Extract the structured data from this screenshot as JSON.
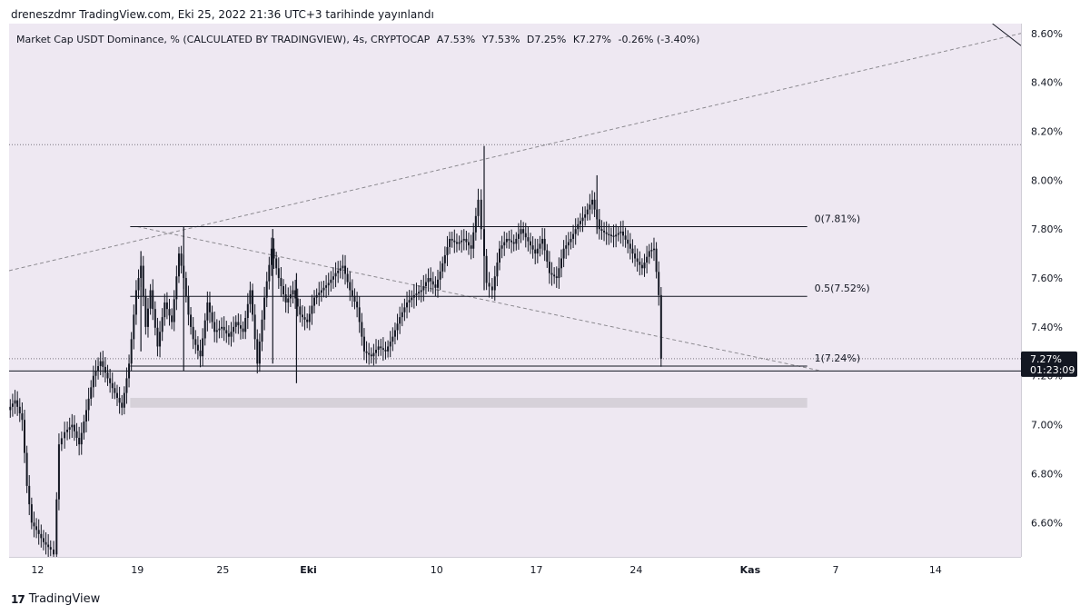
{
  "header": {
    "publish_line": "dreneszdmr TradingView.com, Eki 25, 2022 21:36 UTC+3 tarihinde yayınlandı"
  },
  "legend": {
    "symbol": "Market Cap USDT Dominance, % (CALCULATED BY TRADINGVIEW), 4s, CRYPTOCAP",
    "open": "A7.53%",
    "high": "Y7.53%",
    "low": "D7.25%",
    "close": "K7.27%",
    "change": "-0.26% (-3.40%)"
  },
  "footer": {
    "brand": "TradingView",
    "logo": "17"
  },
  "colors": {
    "chart_bg": "#eee8f2",
    "candle": "#131722",
    "price_tag_bg": "#131722",
    "zone": "#d6d1d9",
    "trendline": "#8c8a90"
  },
  "chart_data": {
    "type": "candlestick",
    "y_axis": {
      "range": [
        6.46,
        8.64
      ],
      "ticks": [
        "8.60%",
        "8.40%",
        "8.20%",
        "8.00%",
        "7.80%",
        "7.60%",
        "7.40%",
        "7.20%",
        "7.00%",
        "6.80%",
        "6.60%"
      ],
      "tick_values": [
        8.6,
        8.4,
        8.2,
        8.0,
        7.8,
        7.6,
        7.4,
        7.2,
        7.0,
        6.8,
        6.6
      ]
    },
    "x_axis": {
      "range": [
        "2022-09-10",
        "2022-11-20"
      ],
      "ticks": [
        {
          "label": "12",
          "date": "2022-09-12",
          "bold": false
        },
        {
          "label": "19",
          "date": "2022-09-19",
          "bold": false
        },
        {
          "label": "25",
          "date": "2022-09-25",
          "bold": false
        },
        {
          "label": "Eki",
          "date": "2022-10-01",
          "bold": true
        },
        {
          "label": "10",
          "date": "2022-10-10",
          "bold": false
        },
        {
          "label": "17",
          "date": "2022-10-17",
          "bold": false
        },
        {
          "label": "24",
          "date": "2022-10-24",
          "bold": false
        },
        {
          "label": "Kas",
          "date": "2022-11-01",
          "bold": true
        },
        {
          "label": "7",
          "date": "2022-11-07",
          "bold": false
        },
        {
          "label": "14",
          "date": "2022-11-14",
          "bold": false
        }
      ]
    },
    "price_path": [
      [
        "2022-09-10",
        7.06
      ],
      [
        "2022-09-10 12:00",
        7.1
      ],
      [
        "2022-09-11",
        7.02
      ],
      [
        "2022-09-11 08:00",
        6.75
      ],
      [
        "2022-09-11 16:00",
        6.6
      ],
      [
        "2022-09-12",
        6.57
      ],
      [
        "2022-09-12 12:00",
        6.52
      ],
      [
        "2022-09-13",
        6.49
      ],
      [
        "2022-09-13 06:00",
        6.47
      ],
      [
        "2022-09-13 14:00",
        6.92
      ],
      [
        "2022-09-14",
        6.97
      ],
      [
        "2022-09-14 12:00",
        7.0
      ],
      [
        "2022-09-15",
        6.92
      ],
      [
        "2022-09-15 12:00",
        7.06
      ],
      [
        "2022-09-16",
        7.2
      ],
      [
        "2022-09-16 12:00",
        7.26
      ],
      [
        "2022-09-17",
        7.19
      ],
      [
        "2022-09-17 12:00",
        7.13
      ],
      [
        "2022-09-18",
        7.07
      ],
      [
        "2022-09-18 12:00",
        7.25
      ],
      [
        "2022-09-19",
        7.55
      ],
      [
        "2022-09-19 08:00",
        7.65
      ],
      [
        "2022-09-19 16:00",
        7.4
      ],
      [
        "2022-09-20",
        7.55
      ],
      [
        "2022-09-20 12:00",
        7.32
      ],
      [
        "2022-09-21",
        7.5
      ],
      [
        "2022-09-21 12:00",
        7.42
      ],
      [
        "2022-09-22",
        7.7
      ],
      [
        "2022-09-22 08:00",
        7.6
      ],
      [
        "2022-09-22 16:00",
        7.45
      ],
      [
        "2022-09-23",
        7.35
      ],
      [
        "2022-09-23 12:00",
        7.28
      ],
      [
        "2022-09-24",
        7.5
      ],
      [
        "2022-09-24 12:00",
        7.38
      ],
      [
        "2022-09-25",
        7.4
      ],
      [
        "2022-09-25 12:00",
        7.36
      ],
      [
        "2022-09-26",
        7.42
      ],
      [
        "2022-09-26 12:00",
        7.38
      ],
      [
        "2022-09-27",
        7.55
      ],
      [
        "2022-09-27 12:00",
        7.25
      ],
      [
        "2022-09-28",
        7.52
      ],
      [
        "2022-09-28 12:00",
        7.72
      ],
      [
        "2022-09-29",
        7.6
      ],
      [
        "2022-09-29 12:00",
        7.5
      ],
      [
        "2022-09-30",
        7.55
      ],
      [
        "2022-09-30 12:00",
        7.45
      ],
      [
        "2022-10-01",
        7.42
      ],
      [
        "2022-10-01 12:00",
        7.52
      ],
      [
        "2022-10-02",
        7.55
      ],
      [
        "2022-10-02 12:00",
        7.58
      ],
      [
        "2022-10-03",
        7.62
      ],
      [
        "2022-10-03 12:00",
        7.65
      ],
      [
        "2022-10-04",
        7.55
      ],
      [
        "2022-10-04 12:00",
        7.48
      ],
      [
        "2022-10-05",
        7.3
      ],
      [
        "2022-10-05 12:00",
        7.28
      ],
      [
        "2022-10-06",
        7.32
      ],
      [
        "2022-10-06 12:00",
        7.3
      ],
      [
        "2022-10-07",
        7.36
      ],
      [
        "2022-10-07 12:00",
        7.44
      ],
      [
        "2022-10-08",
        7.5
      ],
      [
        "2022-10-08 12:00",
        7.53
      ],
      [
        "2022-10-09",
        7.55
      ],
      [
        "2022-10-09 12:00",
        7.6
      ],
      [
        "2022-10-10",
        7.56
      ],
      [
        "2022-10-10 12:00",
        7.66
      ],
      [
        "2022-10-11",
        7.76
      ],
      [
        "2022-10-11 12:00",
        7.74
      ],
      [
        "2022-10-12",
        7.76
      ],
      [
        "2022-10-12 12:00",
        7.72
      ],
      [
        "2022-10-13",
        7.92
      ],
      [
        "2022-10-13 06:00",
        7.8
      ],
      [
        "2022-10-13 14:00",
        7.58
      ],
      [
        "2022-10-14",
        7.55
      ],
      [
        "2022-10-14 12:00",
        7.72
      ],
      [
        "2022-10-15",
        7.76
      ],
      [
        "2022-10-15 12:00",
        7.74
      ],
      [
        "2022-10-16",
        7.8
      ],
      [
        "2022-10-16 12:00",
        7.75
      ],
      [
        "2022-10-17",
        7.7
      ],
      [
        "2022-10-17 12:00",
        7.76
      ],
      [
        "2022-10-18",
        7.62
      ],
      [
        "2022-10-18 12:00",
        7.6
      ],
      [
        "2022-10-19",
        7.72
      ],
      [
        "2022-10-19 12:00",
        7.76
      ],
      [
        "2022-10-20",
        7.82
      ],
      [
        "2022-10-20 12:00",
        7.86
      ],
      [
        "2022-10-21",
        7.92
      ],
      [
        "2022-10-21 12:00",
        7.8
      ],
      [
        "2022-10-22",
        7.78
      ],
      [
        "2022-10-22 12:00",
        7.77
      ],
      [
        "2022-10-23",
        7.79
      ],
      [
        "2022-10-23 12:00",
        7.74
      ],
      [
        "2022-10-24",
        7.68
      ],
      [
        "2022-10-24 12:00",
        7.64
      ],
      [
        "2022-10-25",
        7.71
      ],
      [
        "2022-10-25 08:00",
        7.72
      ],
      [
        "2022-10-25 16:00",
        7.53
      ],
      [
        "2022-10-25 20:00",
        7.27
      ]
    ],
    "spikes": [
      {
        "date": "2022-09-19 06:00",
        "low": 7.3,
        "high": 7.71
      },
      {
        "date": "2022-09-22 06:00",
        "low": 7.22,
        "high": 7.81
      },
      {
        "date": "2022-09-28 12:00",
        "low": 7.25,
        "high": 7.8
      },
      {
        "date": "2022-09-30 04:00",
        "low": 7.17,
        "high": 7.62
      },
      {
        "date": "2022-10-13 08:00",
        "low": 7.55,
        "high": 8.14
      },
      {
        "date": "2022-10-21 06:00",
        "low": 7.78,
        "high": 8.02
      }
    ],
    "fibonacci": [
      {
        "level": "0",
        "value": 7.81,
        "label": "0(7.81%)"
      },
      {
        "level": "0.5",
        "value": 7.525,
        "label": "0.5(7.52%)"
      },
      {
        "level": "1",
        "value": 7.24,
        "label": "1(7.24%)"
      }
    ],
    "fib_range": [
      "2022-09-18 12:00",
      "2022-11-05"
    ],
    "zone": {
      "from": "2022-09-18 12:00",
      "to": "2022-11-05",
      "low": 7.07,
      "high": 7.11
    },
    "dotted_levels": [
      8.145,
      7.27
    ],
    "solid_levels": [
      7.22
    ],
    "trendlines": [
      {
        "style": "dashed",
        "from": [
          "2022-09-10",
          7.63
        ],
        "to": [
          "2022-11-20",
          8.6
        ]
      },
      {
        "style": "dashed",
        "from": [
          "2022-09-19",
          7.81
        ],
        "to": [
          "2022-11-06",
          7.22
        ]
      },
      {
        "style": "solid",
        "from": [
          "2022-11-18",
          8.64
        ],
        "to": [
          "2022-11-20",
          8.55
        ]
      }
    ],
    "last_price": {
      "label": "7.27%",
      "value": 7.27,
      "countdown": "01:23:09"
    }
  }
}
